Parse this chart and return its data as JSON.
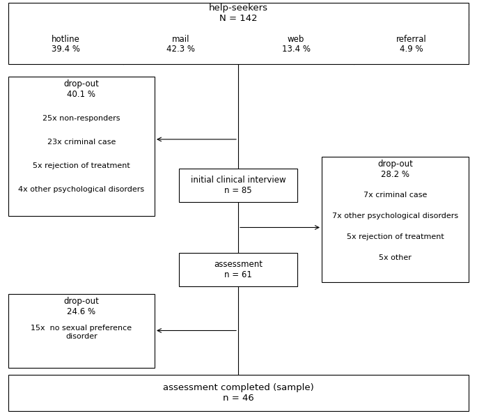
{
  "title_line1": "help-seekers",
  "title_line2": "N = 142",
  "channels": [
    "hotline\n39.4 %",
    "mail\n42.3 %",
    "web\n13.4 %",
    "referral\n4.9 %"
  ],
  "box_interview": "initial clinical interview\nn = 85",
  "box_assessment": "assessment\nn = 61",
  "box_completed": "assessment completed (sample)\nn = 46",
  "dropout1_title": "drop-out\n40.1 %",
  "dropout1_items": [
    "25x non-responders",
    "23x criminal case",
    "5x rejection of treatment",
    "4x other psychological disorders"
  ],
  "dropout2_title": "drop-out\n28.2 %",
  "dropout2_items": [
    "7x criminal case",
    "7x other psychological disorders",
    "5x rejection of treatment",
    "5x other"
  ],
  "dropout3_title": "drop-out\n24.6 %",
  "dropout3_items": [
    "15x  no sexual preference\ndisorder"
  ],
  "bg_color": "#ffffff",
  "text_color": "#000000",
  "box_edge_color": "#000000",
  "font_size": 8.5,
  "font_size_small": 8.0,
  "font_size_title": 9.5
}
